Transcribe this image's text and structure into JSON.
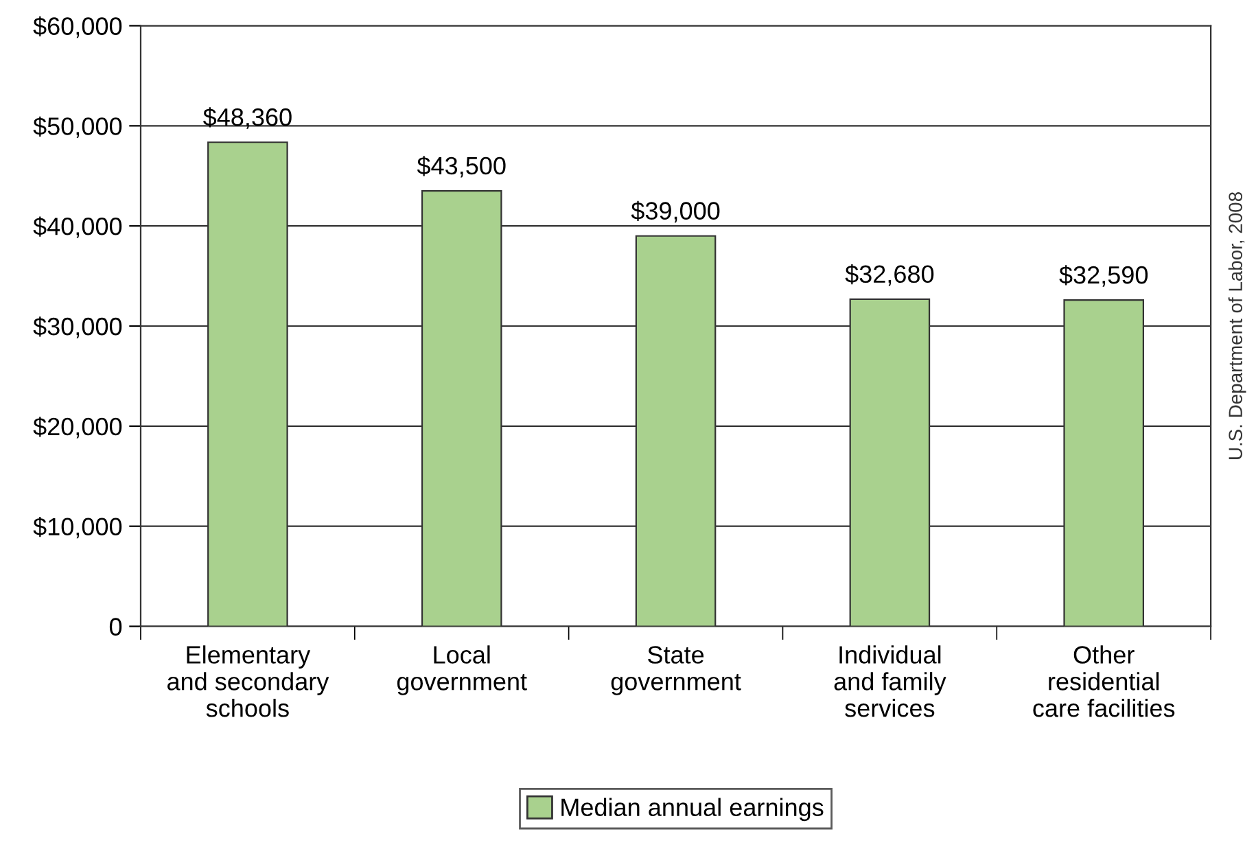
{
  "chart_data": {
    "type": "bar",
    "categories": [
      "Elementary\nand secondary\nschools",
      "Local\ngovernment",
      "State\ngovernment",
      "Individual\nand family\nservices",
      "Other\nresidential\ncare facilities"
    ],
    "series": [
      {
        "name": "Median annual earnings",
        "color": "#a9d18e",
        "values": [
          48360,
          43500,
          39000,
          32680,
          32590
        ],
        "value_labels": [
          "$48,360",
          "$43,500",
          "$39,000",
          "$32,680",
          "$32,590"
        ]
      }
    ],
    "ylim": [
      0,
      60000
    ],
    "yticks": [
      {
        "value": 0,
        "label": "0"
      },
      {
        "value": 10000,
        "label": "$10,000"
      },
      {
        "value": 20000,
        "label": "$20,000"
      },
      {
        "value": 30000,
        "label": "$30,000"
      },
      {
        "value": 40000,
        "label": "$40,000"
      },
      {
        "value": 50000,
        "label": "$50,000"
      },
      {
        "value": 60000,
        "label": "$60,000"
      }
    ],
    "grid": "y",
    "legend": "bottom",
    "annotations": [
      "U.S. Department of Labor, 2008"
    ]
  }
}
